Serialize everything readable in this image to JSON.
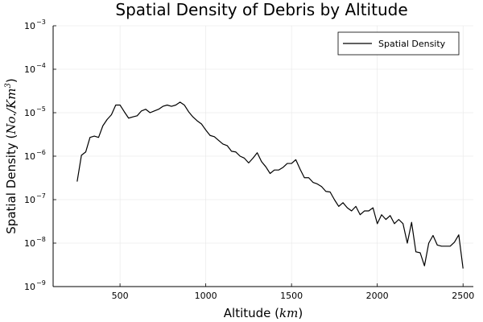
{
  "chart_data": {
    "type": "line",
    "title": "Spatial Density of Debris by Altitude",
    "xlabel_text": "Altitude (",
    "xlabel_math": "km",
    "xlabel_close": ")",
    "ylabel_text": "Spatial Density (",
    "ylabel_math": "No./Km",
    "ylabel_sup": "3",
    "ylabel_close": ")",
    "xlim": [
      110,
      2560
    ],
    "ylim_exp": [
      -9,
      -3
    ],
    "yscale": "log10",
    "xticks": [
      500,
      1000,
      1500,
      2000,
      2500
    ],
    "xtick_labels": [
      "500",
      "1000",
      "1500",
      "2000",
      "2500"
    ],
    "ytick_base": "10",
    "ytick_exps": [
      "−9",
      "−8",
      "−7",
      "−6",
      "−5",
      "−4",
      "−3"
    ],
    "ytick_values": [
      -9,
      -8,
      -7,
      -6,
      -5,
      -4,
      -3
    ],
    "grid": true,
    "legend_position": "top-right",
    "series": [
      {
        "name": "Spatial Density",
        "color": "#000000",
        "x": [
          250,
          275,
          300,
          325,
          350,
          375,
          400,
          425,
          450,
          475,
          500,
          525,
          550,
          575,
          600,
          625,
          650,
          675,
          700,
          725,
          750,
          775,
          800,
          825,
          850,
          875,
          900,
          925,
          950,
          975,
          1000,
          1025,
          1050,
          1075,
          1100,
          1125,
          1150,
          1175,
          1200,
          1225,
          1250,
          1275,
          1300,
          1325,
          1350,
          1375,
          1400,
          1425,
          1450,
          1475,
          1500,
          1525,
          1550,
          1575,
          1600,
          1625,
          1650,
          1675,
          1700,
          1725,
          1750,
          1775,
          1800,
          1825,
          1850,
          1875,
          1900,
          1925,
          1950,
          1975,
          2000,
          2025,
          2050,
          2075,
          2100,
          2125,
          2150,
          2175,
          2200,
          2225,
          2250,
          2275,
          2300,
          2325,
          2350,
          2375,
          2400,
          2425,
          2450,
          2475,
          2500
        ],
        "y": [
          2.6e-07,
          1.05e-06,
          1.25e-06,
          2.7e-06,
          2.9e-06,
          2.7e-06,
          5e-06,
          7e-06,
          9e-06,
          1.5e-05,
          1.5e-05,
          1.05e-05,
          7.5e-06,
          8e-06,
          8.5e-06,
          1.1e-05,
          1.2e-05,
          1e-05,
          1.1e-05,
          1.2e-05,
          1.4e-05,
          1.5e-05,
          1.4e-05,
          1.5e-05,
          1.75e-05,
          1.5e-05,
          1.05e-05,
          8e-06,
          6.5e-06,
          5.5e-06,
          4e-06,
          3e-06,
          2.8e-06,
          2.3e-06,
          1.9e-06,
          1.75e-06,
          1.3e-06,
          1.25e-06,
          1e-06,
          9e-07,
          7e-07,
          9e-07,
          1.2e-06,
          7.5e-07,
          5.7e-07,
          4e-07,
          4.8e-07,
          4.8e-07,
          5.5e-07,
          6.8e-07,
          6.8e-07,
          8.3e-07,
          5e-07,
          3.2e-07,
          3.2e-07,
          2.5e-07,
          2.3e-07,
          2e-07,
          1.55e-07,
          1.5e-07,
          1e-07,
          7e-08,
          8.5e-08,
          6.5e-08,
          5.5e-08,
          7e-08,
          4.5e-08,
          5.5e-08,
          5.5e-08,
          6.5e-08,
          2.8e-08,
          4.5e-08,
          3.5e-08,
          4.3e-08,
          2.8e-08,
          3.5e-08,
          2.8e-08,
          1e-08,
          3e-08,
          6.3e-09,
          6e-09,
          3e-09,
          1e-08,
          1.5e-08,
          9e-09,
          8.5e-09,
          8.5e-09,
          8.5e-09,
          1.05e-08,
          1.55e-08,
          2.6e-09
        ]
      }
    ]
  }
}
